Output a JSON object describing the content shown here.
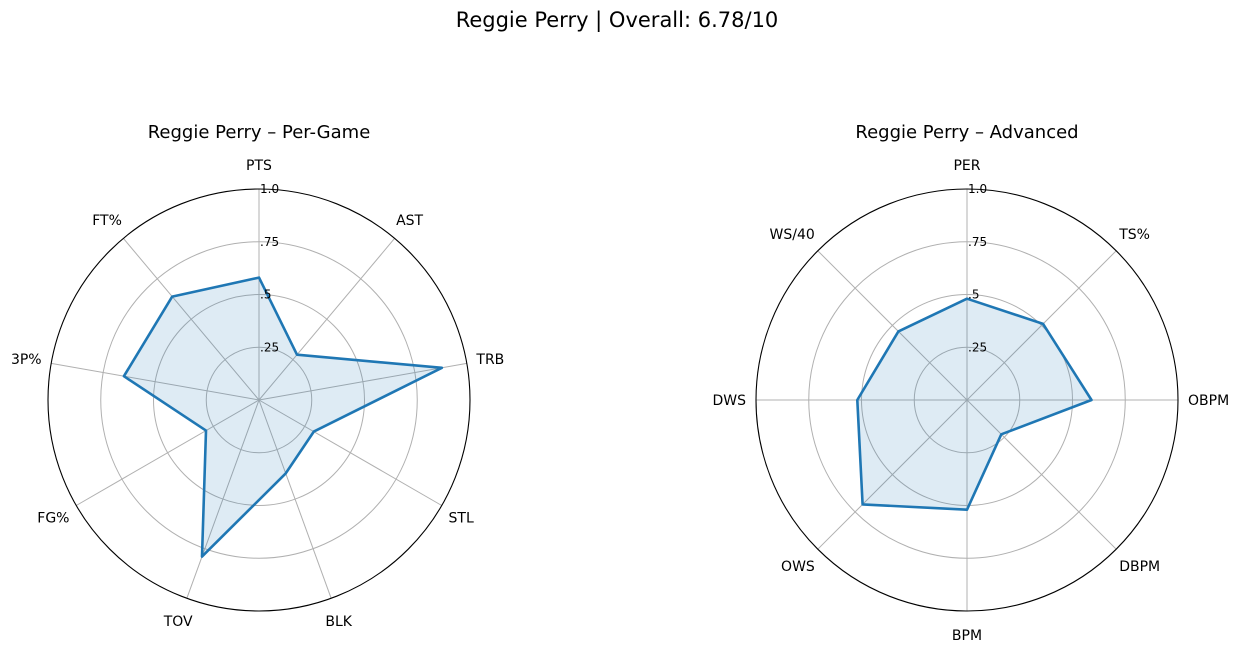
{
  "title": "Reggie Perry | Overall: 6.78/10",
  "colors": {
    "series": "#1f77b4",
    "grid": "#b0b0b0"
  },
  "chart_data": [
    {
      "type": "radar",
      "title": "Reggie Perry – Per-Game",
      "categories": [
        "PTS",
        "AST",
        "TRB",
        "STL",
        "BLK",
        "TOV",
        "FG%",
        "3P%",
        "FT%"
      ],
      "values": [
        0.58,
        0.28,
        0.88,
        0.3,
        0.37,
        0.79,
        0.29,
        0.65,
        0.64
      ],
      "rlim": [
        0,
        1
      ],
      "rticks": [
        0.25,
        0.5,
        0.75,
        1.0
      ],
      "rtick_labels": [
        ".25",
        ".5",
        ".75",
        "1.0"
      ],
      "grid": true
    },
    {
      "type": "radar",
      "title": "Reggie Perry – Advanced",
      "categories": [
        "PER",
        "TS%",
        "OBPM",
        "DBPM",
        "BPM",
        "OWS",
        "DWS",
        "WS/40"
      ],
      "values": [
        0.48,
        0.51,
        0.59,
        0.23,
        0.52,
        0.7,
        0.52,
        0.46
      ],
      "rlim": [
        0,
        1
      ],
      "rticks": [
        0.25,
        0.5,
        0.75,
        1.0
      ],
      "rtick_labels": [
        ".25",
        ".5",
        ".75",
        "1.0"
      ],
      "grid": true
    }
  ]
}
